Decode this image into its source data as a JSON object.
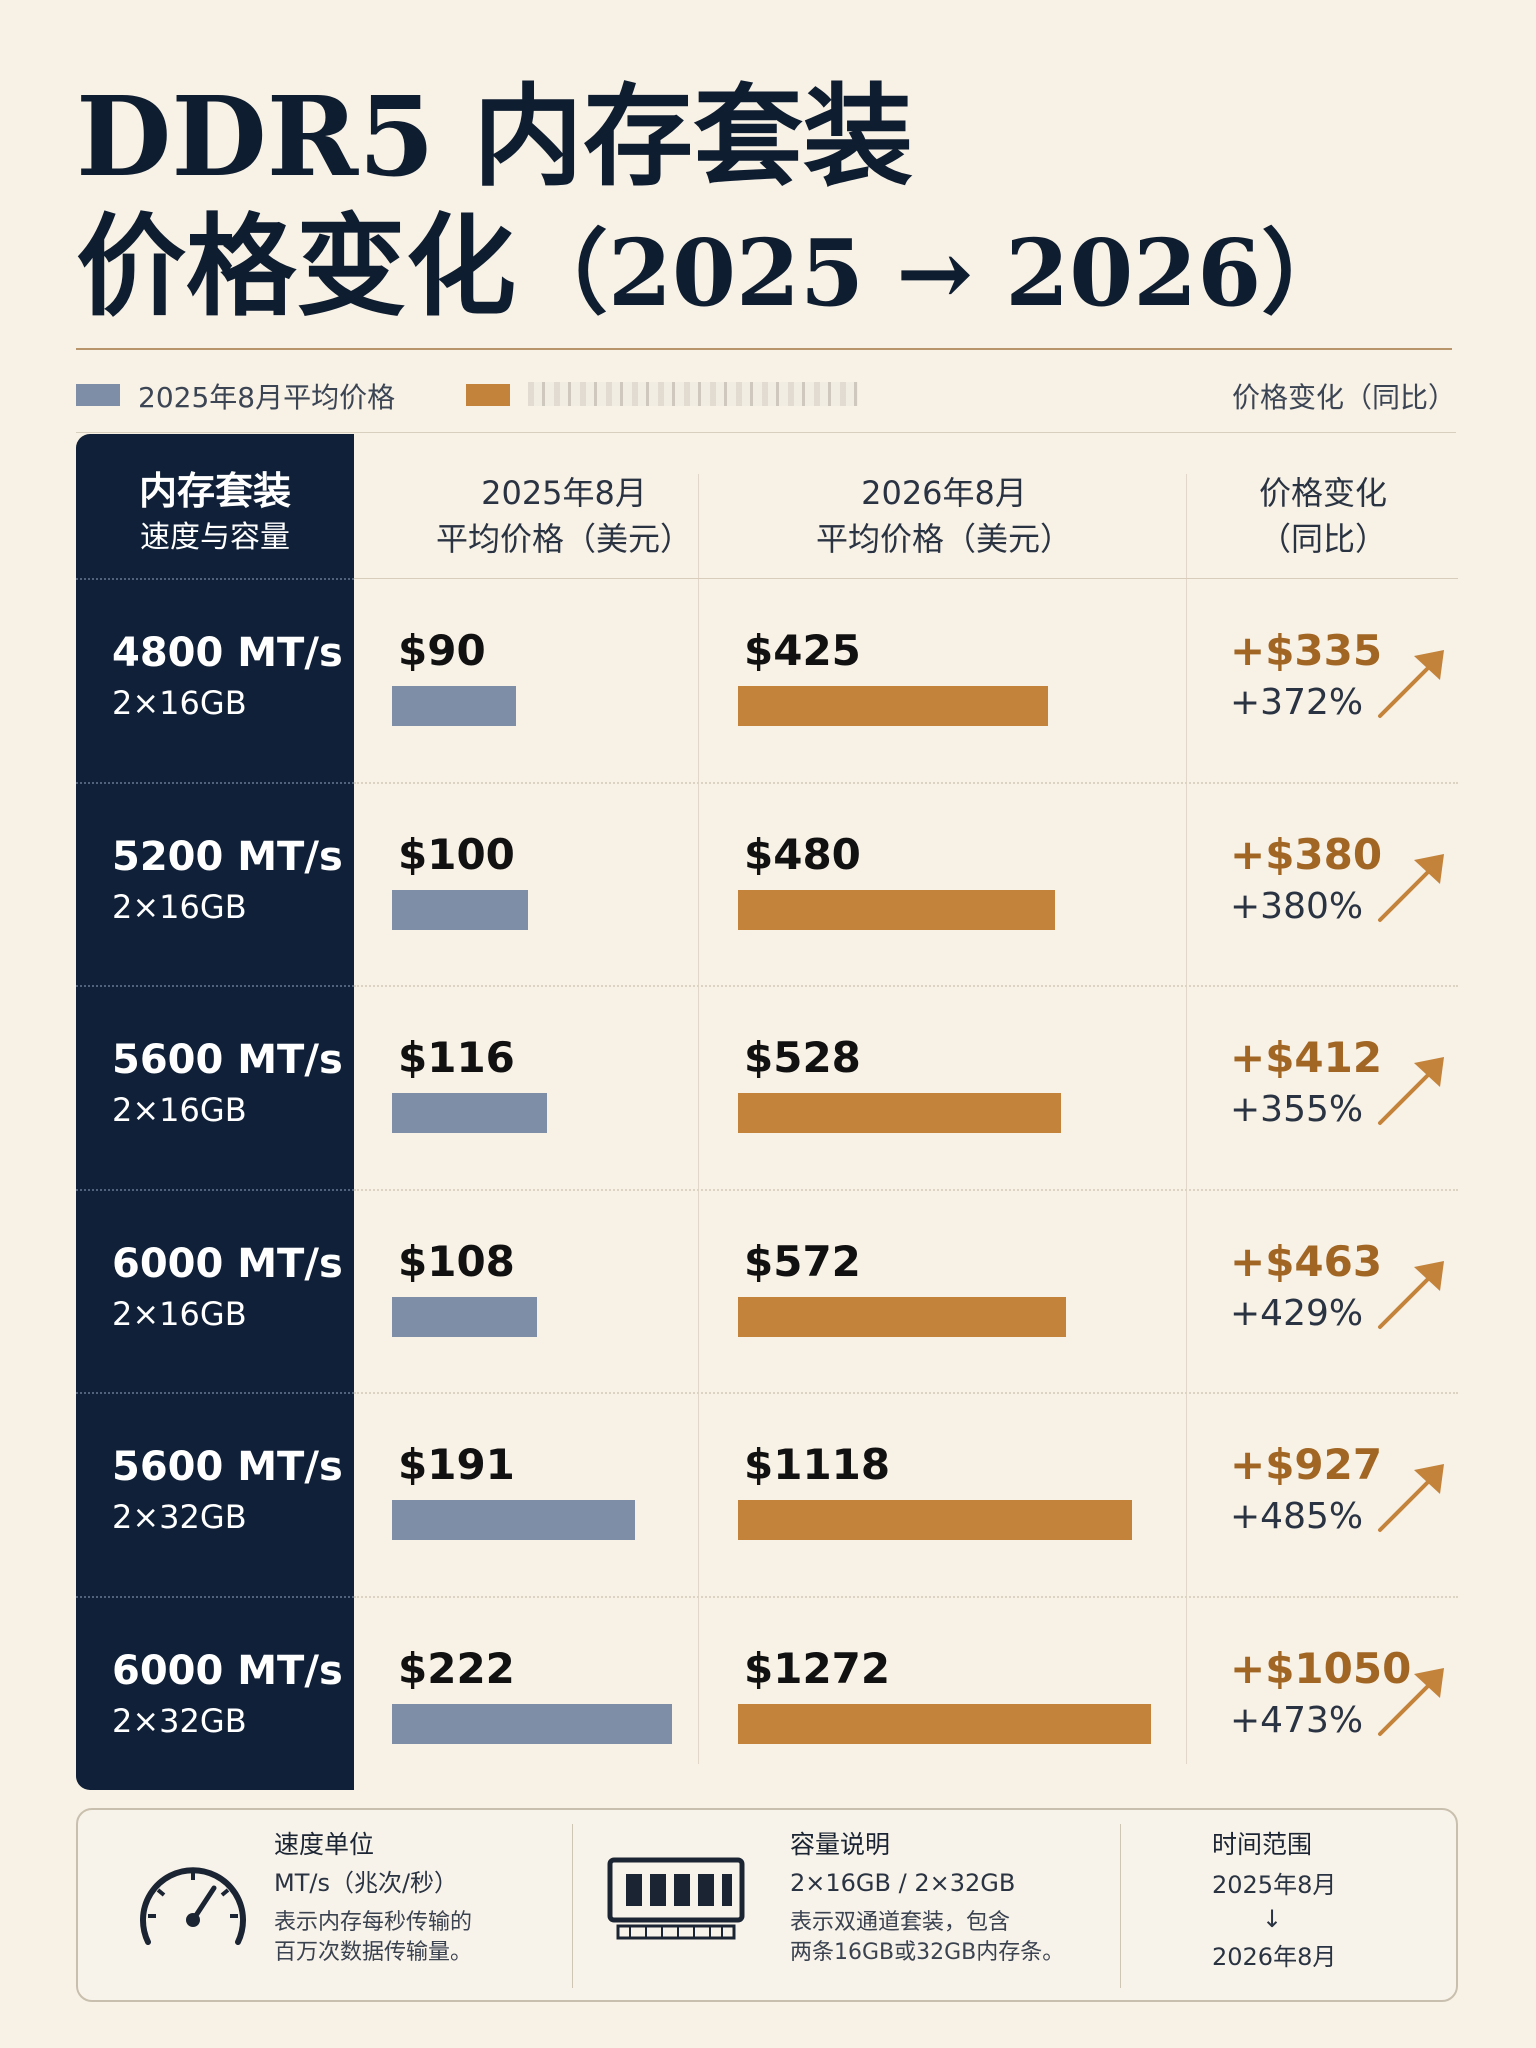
{
  "title": {
    "line1": "DDR5 内存套装",
    "line2_main": "价格变化",
    "line2_paren": "（2025 → 2026）"
  },
  "legend": {
    "item1": "2025年8月平均价格",
    "item3": "价格变化（同比）",
    "color_2025": "#7d8ea6",
    "color_2026": "#c4833b"
  },
  "table": {
    "sidebar_header_line1": "内存套装",
    "sidebar_header_line2": "速度与容量",
    "col1_line1": "2025年8月",
    "col1_line2": "平均价格（美元）",
    "col2_line1": "2026年8月",
    "col2_line2": "平均价格（美元）",
    "col3_line1": "价格变化",
    "col3_line2": "（同比）"
  },
  "chart_data": {
    "type": "bar",
    "categories": [
      "4800 MT/s 2×16GB",
      "5200 MT/s 2×16GB",
      "5600 MT/s 2×16GB",
      "6000 MT/s 2×16GB",
      "5600 MT/s 2×32GB",
      "6000 MT/s 2×32GB"
    ],
    "rows": [
      {
        "speed": "4800 MT/s",
        "capacity": "2×16GB",
        "price_2025": "$90",
        "price_2026": "$425",
        "change": "+$335",
        "pct": "+372%"
      },
      {
        "speed": "5200 MT/s",
        "capacity": "2×16GB",
        "price_2025": "$100",
        "price_2026": "$480",
        "change": "+$380",
        "pct": "+380%"
      },
      {
        "speed": "5600 MT/s",
        "capacity": "2×16GB",
        "price_2025": "$116",
        "price_2026": "$528",
        "change": "+$412",
        "pct": "+355%"
      },
      {
        "speed": "6000 MT/s",
        "capacity": "2×16GB",
        "price_2025": "$108",
        "price_2026": "$572",
        "change": "+$463",
        "pct": "+429%"
      },
      {
        "speed": "5600 MT/s",
        "capacity": "2×32GB",
        "price_2025": "$191",
        "price_2026": "$1118",
        "change": "+$927",
        "pct": "+485%"
      },
      {
        "speed": "6000 MT/s",
        "capacity": "2×32GB",
        "price_2025": "$222",
        "price_2026": "$1272",
        "change": "+$1050",
        "pct": "+473%"
      }
    ],
    "series": [
      {
        "name": "2025年8月平均价格",
        "values": [
          90,
          100,
          116,
          108,
          191,
          222
        ]
      },
      {
        "name": "2026年8月",
        "values": [
          425,
          480,
          528,
          572,
          1118,
          1272
        ]
      }
    ]
  },
  "footer": {
    "speed_title": "速度单位",
    "speed_unit": "MT/s（兆次/秒）",
    "speed_desc1": "表示内存每秒传输的",
    "speed_desc2": "百万次数据传输量。",
    "cap_title": "容量说明",
    "cap_value": "2×16GB / 2×32GB",
    "cap_desc1": "表示双通道套装，包含",
    "cap_desc2": "两条16GB或32GB内存条。",
    "time_title": "时间范围",
    "time_from": "2025年8月",
    "time_arrow": "↓",
    "time_to": "2026年8月"
  }
}
